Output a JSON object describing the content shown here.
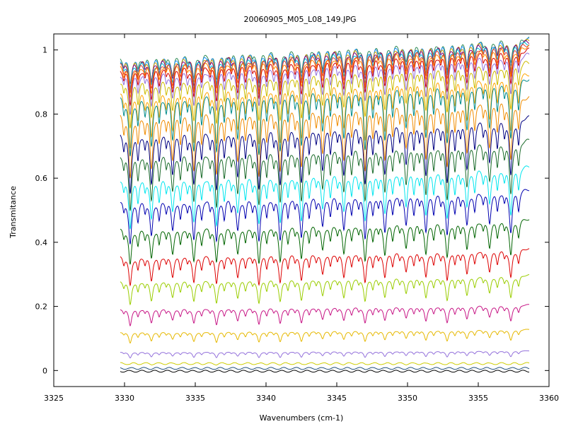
{
  "chart_data": {
    "type": "line",
    "title": "20060905_M05_L08_149.JPG",
    "xlabel": "Wavenumbers (cm-1)",
    "ylabel": "Transmitance",
    "xlim": [
      3325,
      3360
    ],
    "ylim": [
      -0.05,
      1.05
    ],
    "x_ticks": [
      "3325",
      "3330",
      "3335",
      "3340",
      "3345",
      "3350",
      "3355",
      "3360"
    ],
    "y_ticks": [
      "0",
      "0.2",
      "0.4",
      "0.6",
      "0.8",
      "1"
    ],
    "grid": false,
    "legend": "none",
    "x_range": [
      3329.7,
      3358.6
    ],
    "absorption_lines_cm1": [
      3330.4,
      3331.9,
      3333.4,
      3334.9,
      3336.5,
      3338.0,
      3339.5,
      3341.0,
      3342.5,
      3344.0,
      3345.5,
      3347.0,
      3348.4,
      3349.9,
      3351.3,
      3352.8,
      3354.2,
      3355.8,
      3357.3
    ],
    "series": [
      {
        "baseline": 1.005,
        "color": "#2e8b57"
      },
      {
        "baseline": 1.002,
        "color": "#1e90ff"
      },
      {
        "baseline": 0.999,
        "color": "#d4a000"
      },
      {
        "baseline": 0.996,
        "color": "#800080"
      },
      {
        "baseline": 0.992,
        "color": "#00bcd4"
      },
      {
        "baseline": 0.988,
        "color": "#e53935"
      },
      {
        "baseline": 0.982,
        "color": "#ff8c00"
      },
      {
        "baseline": 0.972,
        "color": "#d60000"
      },
      {
        "baseline": 0.958,
        "color": "#9370db"
      },
      {
        "baseline": 0.935,
        "color": "#cdbb00"
      },
      {
        "baseline": 0.9,
        "color": "#ffa500"
      },
      {
        "baseline": 0.885,
        "color": "#008b8b"
      },
      {
        "baseline": 0.83,
        "color": "#f08c00"
      },
      {
        "baseline": 0.77,
        "color": "#000080"
      },
      {
        "baseline": 0.7,
        "color": "#1a6b2a"
      },
      {
        "baseline": 0.62,
        "color": "#00e5ee"
      },
      {
        "baseline": 0.55,
        "color": "#0000b0"
      },
      {
        "baseline": 0.46,
        "color": "#006400"
      },
      {
        "baseline": 0.37,
        "color": "#dd0000"
      },
      {
        "baseline": 0.29,
        "color": "#9acd00"
      },
      {
        "baseline": 0.2,
        "color": "#c71585"
      },
      {
        "baseline": 0.125,
        "color": "#e6b800"
      },
      {
        "baseline": 0.06,
        "color": "#9370db"
      },
      {
        "baseline": 0.022,
        "color": "#cdcd00"
      },
      {
        "baseline": 0.007,
        "color": "#1f4e79"
      },
      {
        "baseline": -0.002,
        "color": "#000000"
      }
    ]
  }
}
